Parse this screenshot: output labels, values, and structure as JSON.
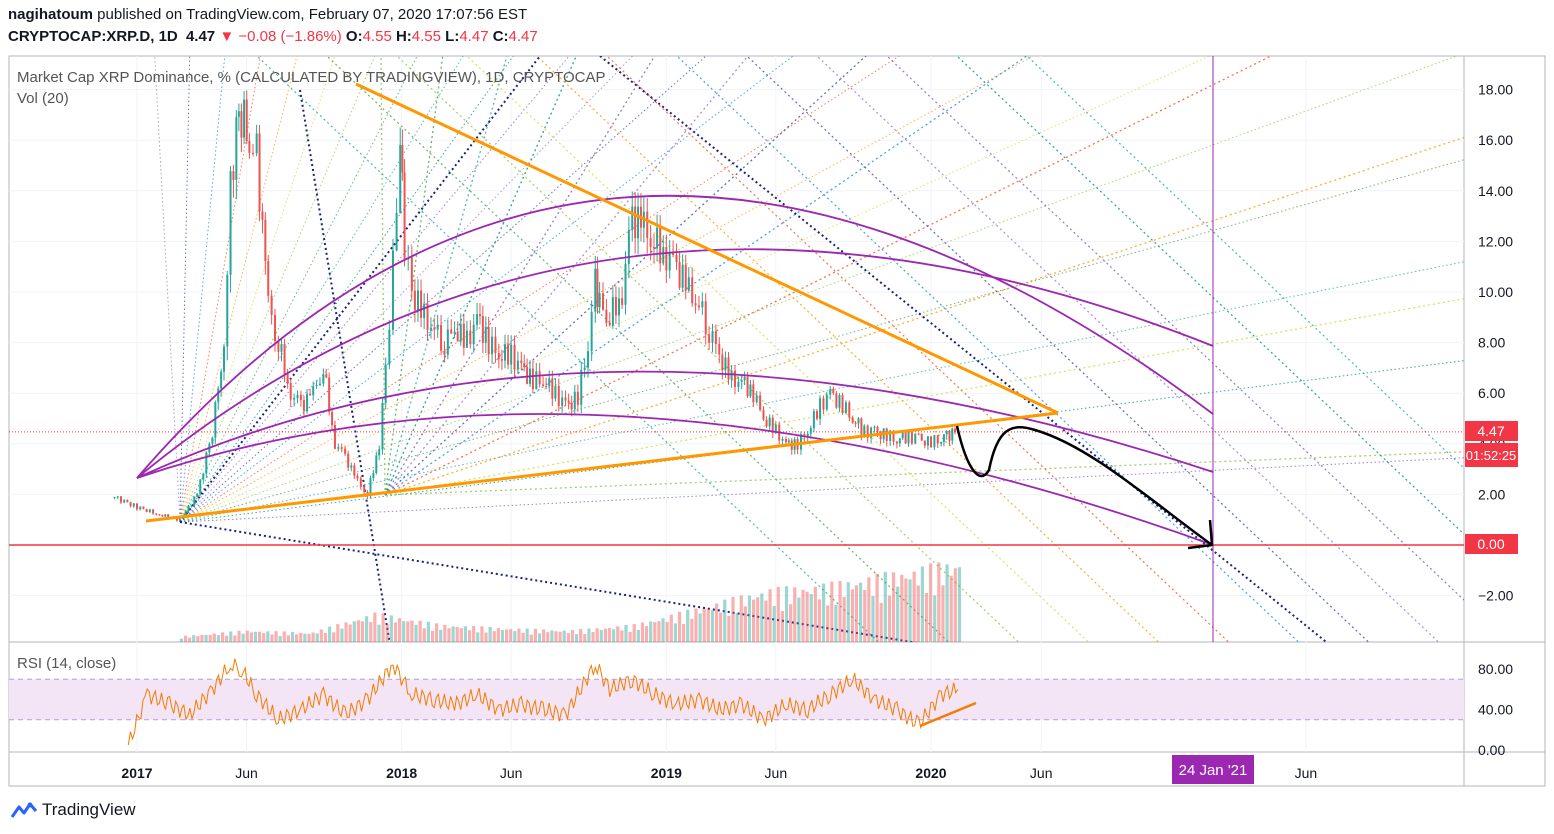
{
  "header": {
    "author": "nagihatoum",
    "published_text": "published on TradingView.com, February 07, 2020 17:07:56 EST",
    "symbol": "CRYPTOCAP:XRP.D, 1D",
    "last": "4.47",
    "change_arrow": "▼",
    "change": "−0.08 (−1.86%)",
    "o_label": "O:",
    "o": "4.55",
    "h_label": "H:",
    "h": "4.55",
    "l_label": "L:",
    "l": "4.47",
    "c_label": "C:",
    "c": "4.47"
  },
  "legend": {
    "title": "Market Cap XRP Dominance, % (CALCULATED BY TRADINGVIEW), 1D, CRYPTOCAP",
    "vol": "Vol (20)",
    "rsi": "RSI (14, close)"
  },
  "price_badges": {
    "last": "4.47",
    "countdown": "01:52:25",
    "zero": "0.00"
  },
  "date_badge": "24 Jan '21",
  "footer": {
    "brand": "TradingView",
    "logo_icon": "tradingview-logo-icon"
  },
  "colors": {
    "up": "#26a69a",
    "down": "#ef5350",
    "arc": "#9c27b0",
    "trend": "#ff9800",
    "rsi_line": "#f57c00",
    "rsi_band": "#f3e5f5",
    "zero_line": "#f23645",
    "badge_red": "#f23645",
    "badge_purple": "#9c27b0"
  },
  "chart_data": [
    {
      "type": "line",
      "title": "Market Cap XRP Dominance, % (CALCULATED BY TRADINGVIEW), 1D, CRYPTOCAP",
      "x_ticks": [
        "2017",
        "Jun",
        "2018",
        "Jun",
        "2019",
        "Jun",
        "2020",
        "Jun",
        "Jun"
      ],
      "y_ticks": [
        "18.00",
        "16.00",
        "14.00",
        "12.00",
        "10.00",
        "8.00",
        "6.00",
        "4.00",
        "2.00",
        "0.00",
        "−2.00"
      ],
      "ylim": [
        -3.8,
        19.3
      ],
      "grid": true,
      "series": [
        {
          "x": [
            "2016-12-01",
            "2017-01-01",
            "2017-02-01",
            "2017-03-01",
            "2017-03-25",
            "2017-04-15",
            "2017-05-01",
            "2017-05-10",
            "2017-05-18",
            "2017-05-25",
            "2017-06-05",
            "2017-06-15",
            "2017-07-01",
            "2017-07-15",
            "2017-08-01",
            "2017-08-15",
            "2017-09-01",
            "2017-09-15",
            "2017-10-01",
            "2017-10-15",
            "2017-11-01",
            "2017-11-15",
            "2017-12-01",
            "2017-12-10",
            "2017-12-20",
            "2017-12-30",
            "2018-01-05",
            "2018-01-15",
            "2018-02-01",
            "2018-02-15",
            "2018-03-01",
            "2018-03-15",
            "2018-04-01",
            "2018-04-15",
            "2018-05-01",
            "2018-05-15",
            "2018-06-01",
            "2018-06-15",
            "2018-07-01",
            "2018-07-15",
            "2018-08-01",
            "2018-08-15",
            "2018-09-01",
            "2018-09-15",
            "2018-09-25",
            "2018-10-01",
            "2018-10-15",
            "2018-11-01",
            "2018-11-15",
            "2018-12-01",
            "2018-12-15",
            "2019-01-01",
            "2019-01-15",
            "2019-02-01",
            "2019-02-15",
            "2019-03-01",
            "2019-03-15",
            "2019-04-01",
            "2019-04-15",
            "2019-05-01",
            "2019-05-15",
            "2019-06-01",
            "2019-06-15",
            "2019-07-01",
            "2019-07-15",
            "2019-08-01",
            "2019-08-15",
            "2019-09-01",
            "2019-09-15",
            "2019-10-01",
            "2019-10-15",
            "2019-11-01",
            "2019-11-15",
            "2019-12-01",
            "2019-12-15",
            "2020-01-01",
            "2020-01-15",
            "2020-02-07"
          ],
          "values": [
            1.9,
            1.5,
            1.2,
            1.0,
            2.0,
            4.5,
            8.0,
            14.0,
            16.5,
            17.0,
            16.0,
            15.5,
            9.5,
            8.0,
            6.0,
            5.5,
            6.0,
            7.0,
            4.0,
            3.5,
            2.5,
            2.0,
            4.0,
            7.0,
            11.0,
            16.0,
            12.0,
            10.0,
            9.0,
            8.5,
            8.0,
            8.5,
            8.0,
            9.0,
            8.0,
            7.5,
            7.5,
            7.0,
            6.5,
            6.5,
            6.0,
            5.5,
            5.8,
            8.0,
            10.5,
            9.5,
            9.0,
            10.0,
            13.0,
            12.5,
            12.0,
            11.5,
            11.0,
            10.0,
            9.5,
            8.5,
            7.5,
            6.5,
            6.5,
            6.0,
            5.0,
            4.5,
            4.0,
            4.0,
            4.5,
            5.5,
            6.0,
            5.5,
            5.0,
            4.5,
            4.5,
            4.3,
            4.2,
            4.3,
            4.2,
            4.0,
            4.3,
            4.47
          ]
        }
      ]
    },
    {
      "type": "bar",
      "title": "Vol (20)",
      "x": [
        "2017-03",
        "2017-06",
        "2017-09",
        "2017-12",
        "2018-03",
        "2018-06",
        "2018-09",
        "2018-12",
        "2019-03",
        "2019-06",
        "2019-09",
        "2019-12",
        "2020-02"
      ],
      "values": [
        0.5,
        1.0,
        0.8,
        2.5,
        1.5,
        1.2,
        1.0,
        1.5,
        3.0,
        4.5,
        5.0,
        6.0,
        7.0
      ]
    },
    {
      "type": "line",
      "title": "RSI (14, close)",
      "y_ticks": [
        "80.00",
        "40.00",
        "0.00"
      ],
      "ylim": [
        0,
        100
      ],
      "band": [
        30,
        70
      ],
      "series": [
        {
          "x": [
            "2016-12-20",
            "2017-01-15",
            "2017-02-15",
            "2017-03-15",
            "2017-04-15",
            "2017-05-10",
            "2017-05-25",
            "2017-06-15",
            "2017-07-15",
            "2017-08-15",
            "2017-09-15",
            "2017-10-15",
            "2017-11-15",
            "2017-12-20",
            "2018-01-15",
            "2018-02-15",
            "2018-03-15",
            "2018-04-15",
            "2018-05-15",
            "2018-06-15",
            "2018-07-15",
            "2018-08-15",
            "2018-09-25",
            "2018-10-15",
            "2018-11-15",
            "2018-12-15",
            "2019-01-15",
            "2019-02-15",
            "2019-03-15",
            "2019-04-15",
            "2019-05-15",
            "2019-06-15",
            "2019-07-15",
            "2019-08-15",
            "2019-09-15",
            "2019-10-15",
            "2019-11-15",
            "2019-12-15",
            "2020-01-15",
            "2020-02-07"
          ],
          "values": [
            5,
            55,
            45,
            35,
            60,
            85,
            80,
            55,
            30,
            40,
            55,
            35,
            50,
            85,
            55,
            50,
            45,
            55,
            40,
            45,
            40,
            35,
            85,
            60,
            70,
            55,
            45,
            50,
            40,
            45,
            30,
            45,
            40,
            55,
            70,
            50,
            40,
            25,
            55,
            60
          ]
        }
      ]
    }
  ]
}
